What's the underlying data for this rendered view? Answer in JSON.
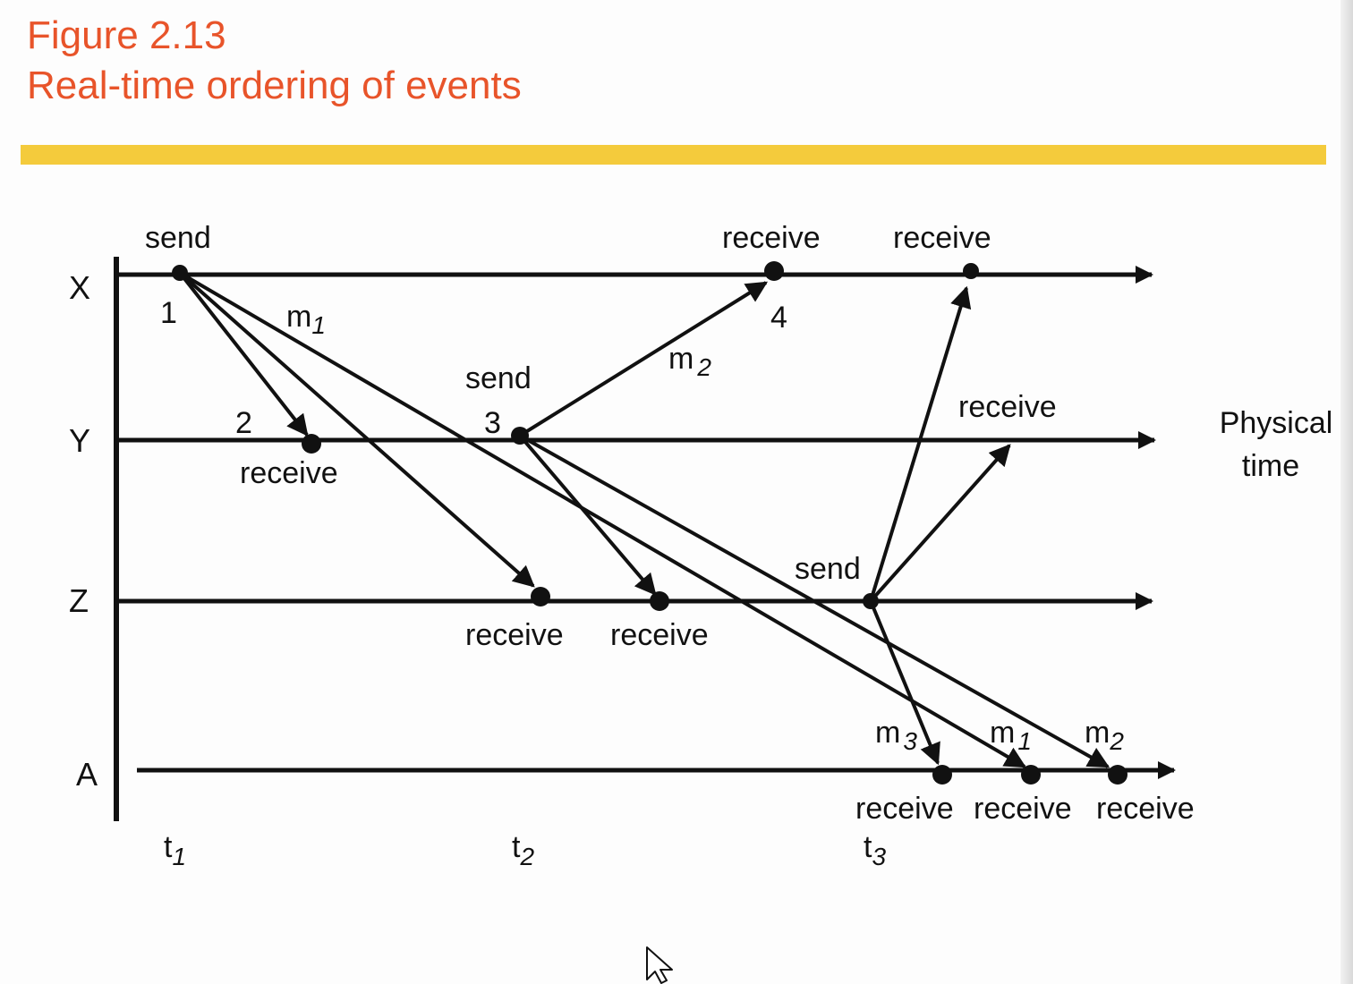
{
  "title": {
    "line1": "Figure 2.13",
    "line2": "Real-time ordering of events"
  },
  "processes": {
    "x": "X",
    "y": "Y",
    "z": "Z",
    "a": "A"
  },
  "time_axis_label": {
    "line1": "Physical",
    "line2": "time"
  },
  "time_ticks": [
    {
      "base": "t",
      "sub": "1"
    },
    {
      "base": "t",
      "sub": "2"
    },
    {
      "base": "t",
      "sub": "3"
    }
  ],
  "event_labels": {
    "x_send": "send",
    "x_receive_4": "receive",
    "x_receive_2": "receive",
    "y_receive_2": "receive",
    "y_send_3": "send",
    "y_receive_right": "receive",
    "z_receive_1": "receive",
    "z_receive_2": "receive",
    "z_send": "send",
    "a_receive_1": "receive",
    "a_receive_2": "receive",
    "a_receive_3": "receive"
  },
  "event_numbers": {
    "n1": "1",
    "n2": "2",
    "n3": "3",
    "n4": "4"
  },
  "messages": {
    "m1_top": {
      "base": "m",
      "sub": "1"
    },
    "m2_top": {
      "base": "m",
      "sub": "2"
    },
    "m3_bottom": {
      "base": "m",
      "sub": "3"
    },
    "m1_bottom": {
      "base": "m",
      "sub": "1"
    },
    "m2_bottom": {
      "base": "m",
      "sub": "2"
    }
  },
  "colors": {
    "title": "#e8542a",
    "bar": "#f4cb3c",
    "diagram": "#111111"
  }
}
